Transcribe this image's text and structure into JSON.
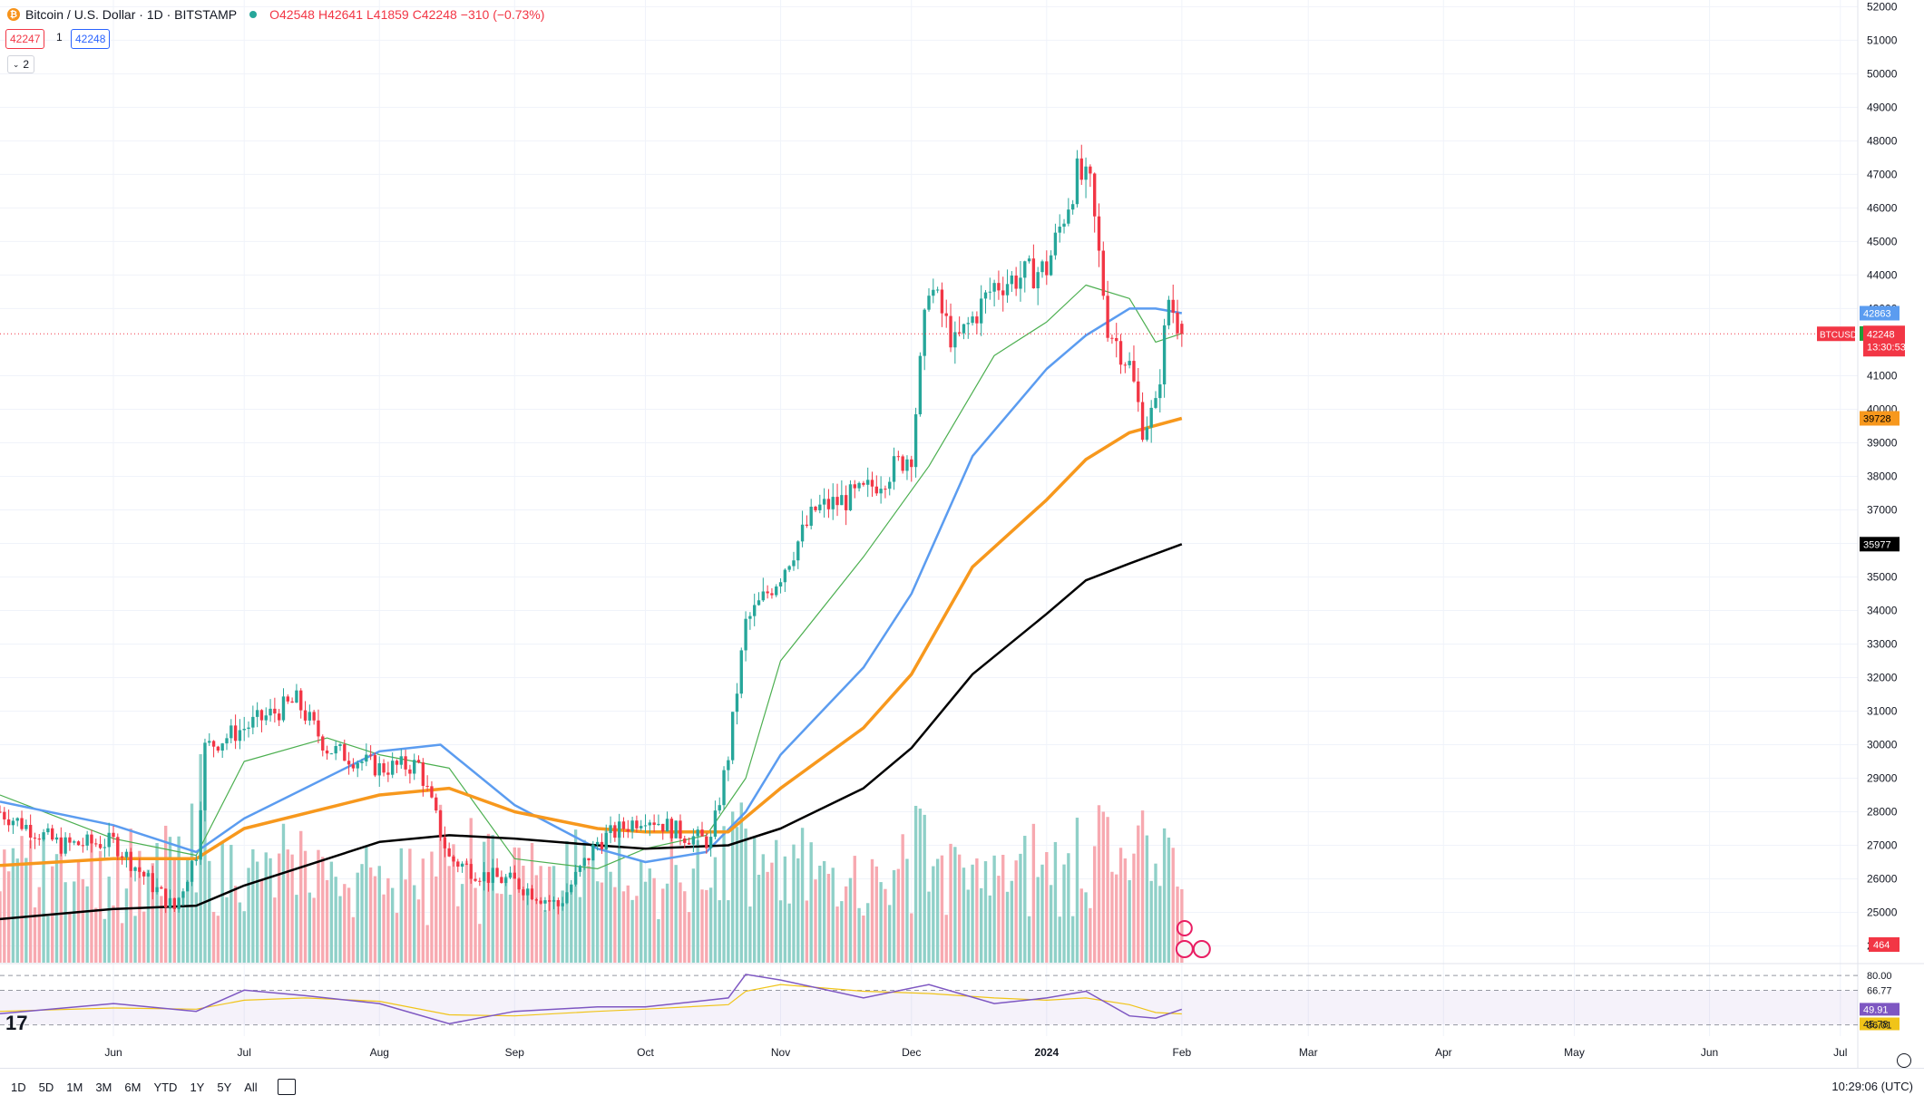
{
  "header": {
    "symbol": "Bitcoin / U.S. Dollar · 1D · BITSTAMP",
    "open": "O42548",
    "high": "H42641",
    "low": "L41859",
    "close": "C42248",
    "change": "−310 (−0.73%)",
    "sell_price": "42247",
    "quantity": "1",
    "buy_price": "42248",
    "indicators_count": "2"
  },
  "colors": {
    "up": "#26a69a",
    "down": "#f23645",
    "vol_up": "#8fd0c8",
    "vol_down": "#f7a9b0",
    "ma20": "#4caf50",
    "ma50": "#5b9cf0",
    "ma100": "#f7981d",
    "ma200": "#000000",
    "rsi": "#7e57c2",
    "rsi_ma": "#f0c419"
  },
  "labels": {
    "ticker_tag": "BTCUSD",
    "countdown": "13:30:53",
    "volume_tag": "464",
    "rsi_value_tag": "49.91",
    "rsi_ma_tag": "45.78"
  },
  "bottom_bar": {
    "timeframes": [
      "1D",
      "5D",
      "1M",
      "3M",
      "6M",
      "YTD",
      "1Y",
      "5Y",
      "All"
    ],
    "clock": "10:29:06 (UTC)"
  },
  "chart_data": {
    "type": "candlestick",
    "symbol": "BTCUSD",
    "price_axis_ticks": [
      24000,
      25000,
      26000,
      27000,
      28000,
      29000,
      30000,
      31000,
      32000,
      33000,
      34000,
      35000,
      36000,
      37000,
      38000,
      39000,
      40000,
      41000,
      43000,
      44000,
      45000,
      46000,
      47000,
      48000,
      49000,
      50000,
      51000,
      52000
    ],
    "ylim": [
      23500,
      52200
    ],
    "x_axis_labels": [
      "Jun",
      "Jul",
      "Aug",
      "Sep",
      "Oct",
      "Nov",
      "Dec",
      "2024",
      "Feb",
      "Mar",
      "Apr",
      "May",
      "Jun",
      "Jul"
    ],
    "x_range": [
      "2023-05-06",
      "2024-07-05"
    ],
    "last_price": 42248,
    "indicator_tags": [
      {
        "name": "MA50",
        "value": 42863
      },
      {
        "name": "MA20",
        "value": 42257
      },
      {
        "name": "MA100",
        "value": 39728
      },
      {
        "name": "MA200",
        "value": 35977
      }
    ],
    "series": [
      {
        "name": "BTCUSD",
        "kind": "close",
        "x": [
          "2023-05-06",
          "2023-05-20",
          "2023-06-01",
          "2023-06-10",
          "2023-06-15",
          "2023-06-20",
          "2023-06-22",
          "2023-07-01",
          "2023-07-13",
          "2023-07-20",
          "2023-08-01",
          "2023-08-10",
          "2023-08-17",
          "2023-08-25",
          "2023-09-01",
          "2023-09-11",
          "2023-09-20",
          "2023-10-01",
          "2023-10-10",
          "2023-10-16",
          "2023-10-20",
          "2023-10-24",
          "2023-11-01",
          "2023-11-09",
          "2023-11-20",
          "2023-12-01",
          "2023-12-05",
          "2023-12-11",
          "2023-12-20",
          "2024-01-01",
          "2024-01-08",
          "2024-01-11",
          "2024-01-15",
          "2024-01-20",
          "2024-01-23",
          "2024-01-26",
          "2024-01-29",
          "2024-02-01"
        ],
        "y": [
          28000,
          27000,
          27100,
          25800,
          25100,
          26800,
          29900,
          30500,
          31300,
          29900,
          29300,
          29400,
          26600,
          26100,
          25900,
          25200,
          27100,
          27900,
          27300,
          27100,
          29700,
          33600,
          35100,
          37000,
          37500,
          38700,
          43800,
          41900,
          43700,
          44200,
          47000,
          46600,
          42500,
          41300,
          39500,
          40000,
          43300,
          42248
        ]
      },
      {
        "name": "MA20",
        "x": [
          "2023-05-06",
          "2023-06-01",
          "2023-06-20",
          "2023-07-01",
          "2023-07-20",
          "2023-08-01",
          "2023-08-17",
          "2023-09-01",
          "2023-09-20",
          "2023-10-01",
          "2023-10-15",
          "2023-10-24",
          "2023-11-01",
          "2023-11-20",
          "2023-12-05",
          "2023-12-20",
          "2024-01-01",
          "2024-01-10",
          "2024-01-20",
          "2024-01-26",
          "2024-02-01"
        ],
        "y": [
          28500,
          27200,
          26700,
          29500,
          30200,
          29700,
          29300,
          26600,
          26300,
          26900,
          27300,
          29000,
          32500,
          35600,
          38300,
          41600,
          42600,
          43700,
          43300,
          42000,
          42257
        ]
      },
      {
        "name": "MA50",
        "x": [
          "2023-05-06",
          "2023-06-01",
          "2023-06-20",
          "2023-07-01",
          "2023-08-01",
          "2023-08-15",
          "2023-09-01",
          "2023-09-20",
          "2023-10-01",
          "2023-10-15",
          "2023-10-24",
          "2023-11-01",
          "2023-11-20",
          "2023-12-01",
          "2023-12-15",
          "2024-01-01",
          "2024-01-10",
          "2024-01-20",
          "2024-01-26",
          "2024-02-01"
        ],
        "y": [
          28300,
          27600,
          26800,
          27800,
          29800,
          30000,
          28200,
          26900,
          26500,
          26800,
          28000,
          29700,
          32300,
          34500,
          38600,
          41200,
          42200,
          43000,
          43000,
          42863
        ]
      },
      {
        "name": "MA100",
        "x": [
          "2023-05-06",
          "2023-06-01",
          "2023-06-20",
          "2023-07-01",
          "2023-08-01",
          "2023-08-17",
          "2023-09-01",
          "2023-09-20",
          "2023-10-01",
          "2023-10-20",
          "2023-11-01",
          "2023-11-20",
          "2023-12-01",
          "2023-12-15",
          "2024-01-01",
          "2024-01-10",
          "2024-01-20",
          "2024-02-01"
        ],
        "y": [
          26400,
          26600,
          26600,
          27500,
          28500,
          28700,
          28000,
          27500,
          27400,
          27400,
          28700,
          30500,
          32100,
          35300,
          37300,
          38500,
          39300,
          39728
        ]
      },
      {
        "name": "MA200",
        "x": [
          "2023-05-06",
          "2023-06-01",
          "2023-06-20",
          "2023-07-01",
          "2023-08-01",
          "2023-08-17",
          "2023-09-01",
          "2023-09-20",
          "2023-10-01",
          "2023-10-20",
          "2023-11-01",
          "2023-11-20",
          "2023-12-01",
          "2023-12-15",
          "2024-01-01",
          "2024-01-10",
          "2024-01-20",
          "2024-02-01"
        ],
        "y": [
          24800,
          25100,
          25200,
          25800,
          27100,
          27300,
          27200,
          27000,
          26900,
          27000,
          27500,
          28700,
          29900,
          32100,
          33900,
          34900,
          35400,
          35977
        ]
      }
    ],
    "rsi": {
      "name": "RSI",
      "levels": [
        80.0,
        66.77,
        49.91,
        45.78,
        36.01
      ],
      "ylim": [
        30,
        85
      ],
      "x": [
        "2023-05-06",
        "2023-06-01",
        "2023-06-20",
        "2023-07-01",
        "2023-07-15",
        "2023-08-01",
        "2023-08-17",
        "2023-09-01",
        "2023-09-20",
        "2023-10-01",
        "2023-10-20",
        "2023-10-24",
        "2023-11-01",
        "2023-11-20",
        "2023-12-05",
        "2023-12-20",
        "2024-01-01",
        "2024-01-10",
        "2024-01-20",
        "2024-01-26",
        "2024-02-01"
      ],
      "y": [
        46,
        55,
        48,
        67,
        62,
        55,
        37,
        48,
        52,
        52,
        60,
        81,
        76,
        60,
        72,
        55,
        60,
        66,
        44,
        42,
        49.91
      ],
      "ma_y": [
        48,
        51,
        50,
        58,
        60,
        57,
        45,
        44,
        48,
        50,
        54,
        66,
        72,
        66,
        64,
        60,
        58,
        60,
        54,
        47,
        45.78
      ]
    }
  }
}
